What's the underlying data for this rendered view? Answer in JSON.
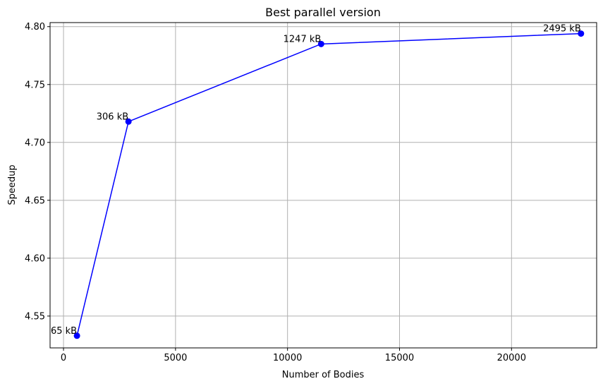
{
  "chart_data": {
    "type": "line",
    "title": "Best parallel version",
    "xlabel": "Number of Bodies",
    "ylabel": "Speedup",
    "xlim": [
      -600,
      23800
    ],
    "ylim": [
      4.5225,
      4.8035
    ],
    "xticks": [
      0,
      5000,
      10000,
      15000,
      20000
    ],
    "yticks": [
      4.55,
      4.6,
      4.65,
      4.7,
      4.75,
      4.8
    ],
    "xtick_labels": [
      "0",
      "5000",
      "10000",
      "15000",
      "20000"
    ],
    "ytick_labels": [
      "4.55",
      "4.60",
      "4.65",
      "4.70",
      "4.75",
      "4.80"
    ],
    "grid": true,
    "series": [
      {
        "color": "#0000ff",
        "marker": "circle",
        "x": [
          600,
          2900,
          11500,
          23100
        ],
        "y": [
          4.533,
          4.718,
          4.785,
          4.794
        ],
        "point_labels": [
          "65 kB",
          "306 kB",
          "1247 kB",
          "2495 kB"
        ]
      }
    ]
  }
}
